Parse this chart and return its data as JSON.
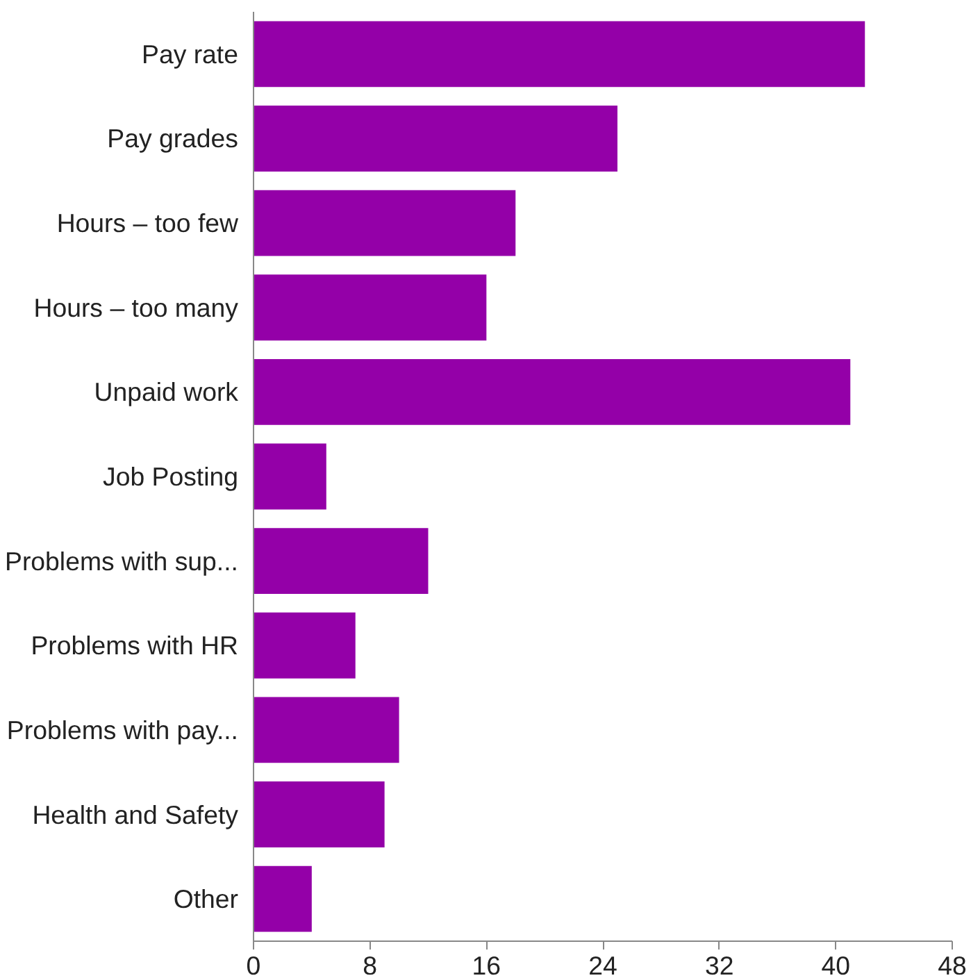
{
  "chart_data": {
    "type": "bar",
    "orientation": "horizontal",
    "categories": [
      "Pay rate",
      "Pay grades",
      "Hours – too few",
      "Hours – too many",
      "Unpaid work",
      "Job Posting",
      "Problems with sup...",
      "Problems with HR",
      "Problems with pay...",
      "Health and Safety",
      "Other"
    ],
    "values": [
      42,
      25,
      18,
      16,
      41,
      5,
      12,
      7,
      10,
      9,
      4
    ],
    "color": "#9400a8",
    "xlim": [
      0,
      48
    ],
    "xticks": [
      0,
      8,
      16,
      24,
      32,
      40,
      48
    ],
    "grid": false
  }
}
